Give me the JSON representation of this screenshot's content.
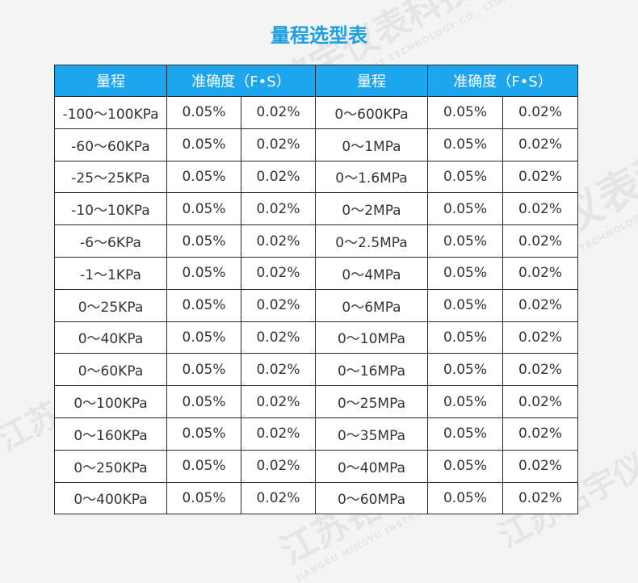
{
  "title": "量程选型表",
  "header": {
    "range1": "量程",
    "accuracy1": "准确度（F•S）",
    "range2": "量程",
    "accuracy2": "准确度（F•S）"
  },
  "rows": [
    [
      "-100～100KPa",
      "0.05%",
      "0.02%",
      "0～600KPa",
      "0.05%",
      "0.02%"
    ],
    [
      "-60～60KPa",
      "0.05%",
      "0.02%",
      "0～1MPa",
      "0.05%",
      "0.02%"
    ],
    [
      "-25～25KPa",
      "0.05%",
      "0.02%",
      "0～1.6MPa",
      "0.05%",
      "0.02%"
    ],
    [
      "-10～10KPa",
      "0.05%",
      "0.02%",
      "0～2MPa",
      "0.05%",
      "0.02%"
    ],
    [
      "-6～6KPa",
      "0.05%",
      "0.02%",
      "0～2.5MPa",
      "0.05%",
      "0.02%"
    ],
    [
      "-1～1KPa",
      "0.05%",
      "0.02%",
      "0～4MPa",
      "0.05%",
      "0.02%"
    ],
    [
      "0～25KPa",
      "0.05%",
      "0.02%",
      "0～6MPa",
      "0.05%",
      "0.02%"
    ],
    [
      "0～40KPa",
      "0.05%",
      "0.02%",
      "0～10MPa",
      "0.05%",
      "0.02%"
    ],
    [
      "0～60KPa",
      "0.05%",
      "0.02%",
      "0～16MPa",
      "0.05%",
      "0.02%"
    ],
    [
      "0～100KPa",
      "0.05%",
      "0.02%",
      "0～25MPa",
      "0.05%",
      "0.02%"
    ],
    [
      "0～160KPa",
      "0.05%",
      "0.02%",
      "0～35MPa",
      "0.05%",
      "0.02%"
    ],
    [
      "0～250KPa",
      "0.05%",
      "0.02%",
      "0～40MPa",
      "0.05%",
      "0.02%"
    ],
    [
      "0～400KPa",
      "0.05%",
      "0.02%",
      "0～60MPa",
      "0.05%",
      "0.02%"
    ]
  ],
  "watermark": {
    "cn": "江苏铭宇仪表科技",
    "en": "JIANGSU MINGYU INSTRUMENT TECHNOLOGY CO., LTD."
  },
  "colors": {
    "accent": "#1a9fe0",
    "header_bg": "#1da6ee"
  }
}
